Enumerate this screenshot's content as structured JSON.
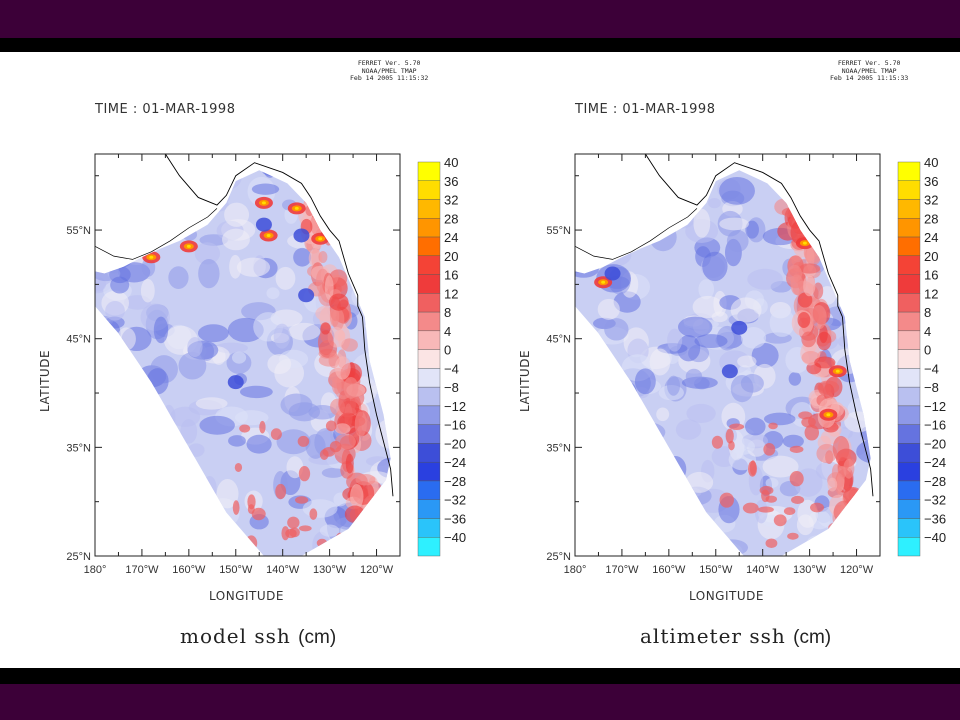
{
  "colors": {
    "frame": "#3c0038",
    "bar": "#000000",
    "land": "#ffffff",
    "ocean_positive": "#e53935",
    "ocean_negative": "#3552d4",
    "neutral": "#f7f7fb"
  },
  "colorbar": {
    "levels": [
      40,
      36,
      32,
      28,
      24,
      20,
      16,
      12,
      8,
      4,
      0,
      -4,
      -8,
      -12,
      -16,
      -20,
      -24,
      -28,
      -32,
      -36,
      -40
    ],
    "labels": [
      "40",
      "36",
      "32",
      "28",
      "24",
      "20",
      "16",
      "12",
      "8",
      "4",
      "0",
      "−4",
      "−8",
      "−12",
      "−16",
      "−20",
      "−24",
      "−28",
      "−32",
      "−36",
      "−40"
    ],
    "colors": [
      "#ffff00",
      "#ffdd00",
      "#ffb800",
      "#ff9500",
      "#ff6e00",
      "#f44336",
      "#ef3b3b",
      "#f06060",
      "#f48a8a",
      "#f8b8b8",
      "#fbe4e4",
      "#e1e4f8",
      "#b9c0f0",
      "#8e99e8",
      "#6573e0",
      "#3d4ed8",
      "#2a40e0",
      "#2a6cf0",
      "#2a98f5",
      "#2ac4fa",
      "#2ef0ff"
    ]
  },
  "axes": {
    "lat_ticks": [
      "55°N",
      "45°N",
      "35°N",
      "25°N"
    ],
    "lon_ticks": [
      "180°",
      "170°W",
      "160°W",
      "150°W",
      "140°W",
      "130°W",
      "120°W"
    ],
    "xlabel": "LONGITUDE",
    "ylabel": "LATITUDE",
    "lon_range": [
      180,
      115
    ],
    "lat_range": [
      25,
      62
    ]
  },
  "panels": [
    {
      "stamp": "FERRET Ver. 5.70\nNOAA/PMEL TMAP\nFeb 14 2005 11:15:32",
      "time_label": "TIME : 01-MAR-1998",
      "caption": "model ssh",
      "unit": "(cm)"
    },
    {
      "stamp": "FERRET Ver. 5.70\nNOAA/PMEL TMAP\nFeb 14 2005 11:15:33",
      "time_label": "TIME : 01-MAR-1998",
      "caption": "altimeter ssh",
      "unit": "(cm)"
    }
  ]
}
